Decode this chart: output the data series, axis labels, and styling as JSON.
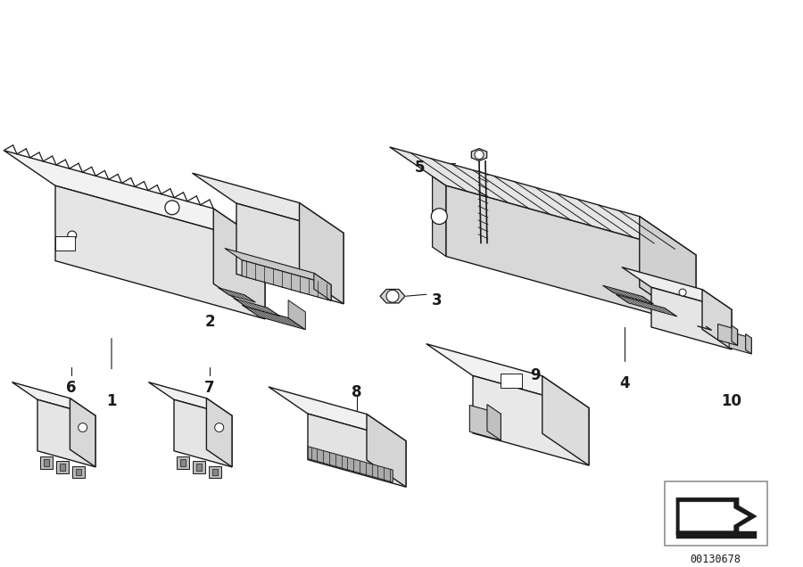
{
  "background_color": "#ffffff",
  "line_color": "#1a1a1a",
  "figure_width": 9.0,
  "figure_height": 6.36,
  "dpi": 100,
  "part_number": "00130678",
  "fc_top": "#f0f0f0",
  "fc_left": "#d8d8d8",
  "fc_right": "#e8e8e8",
  "fc_dark": "#b0b0b0"
}
